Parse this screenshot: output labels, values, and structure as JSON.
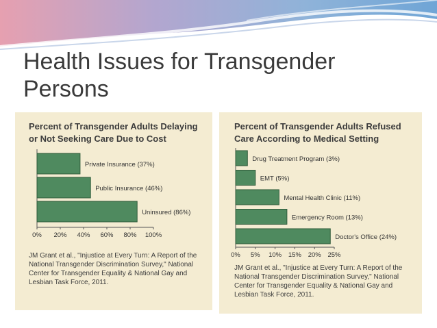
{
  "slide": {
    "title": "Health Issues for Transgender Persons"
  },
  "chart_data": [
    {
      "type": "bar",
      "orientation": "horizontal",
      "title": "Percent of Transgender Adults Delaying or Not Seeking Care Due to Cost",
      "categories": [
        "Private Insurance (37%)",
        "Public Insurance (46%)",
        "Uninsured (86%)"
      ],
      "values": [
        37,
        46,
        86
      ],
      "xlim": [
        0,
        100
      ],
      "xticks": [
        "0%",
        "20%",
        "40%",
        "60%",
        "80%",
        "100%"
      ],
      "bar_color": "#4f8a5f",
      "grid": false,
      "citation": "JM Grant et al., \"Injustice at Every Turn: A Report of the National Transgender Discrimination Survey,\" National Center for Transgender Equality & National Gay and Lesbian Task Force, 2011."
    },
    {
      "type": "bar",
      "orientation": "horizontal",
      "title": "Percent of Transgender Adults Refused Care According to Medical Setting",
      "categories": [
        "Drug Treatment Program (3%)",
        "EMT (5%)",
        "Mental Health Clinic (11%)",
        "Emergency Room (13%)",
        "Doctor's Office (24%)"
      ],
      "values": [
        3,
        5,
        11,
        13,
        24
      ],
      "xlim": [
        0,
        25
      ],
      "xticks": [
        "0%",
        "5%",
        "10%",
        "15%",
        "20%",
        "25%"
      ],
      "bar_color": "#4f8a5f",
      "grid": false,
      "citation": "JM Grant et al., \"Injustice at Every Turn: A Report of the National Transgender Discrimination Survey,\" National Center for Transgender Equality & National Gay and Lesbian Task Force, 2011."
    }
  ]
}
